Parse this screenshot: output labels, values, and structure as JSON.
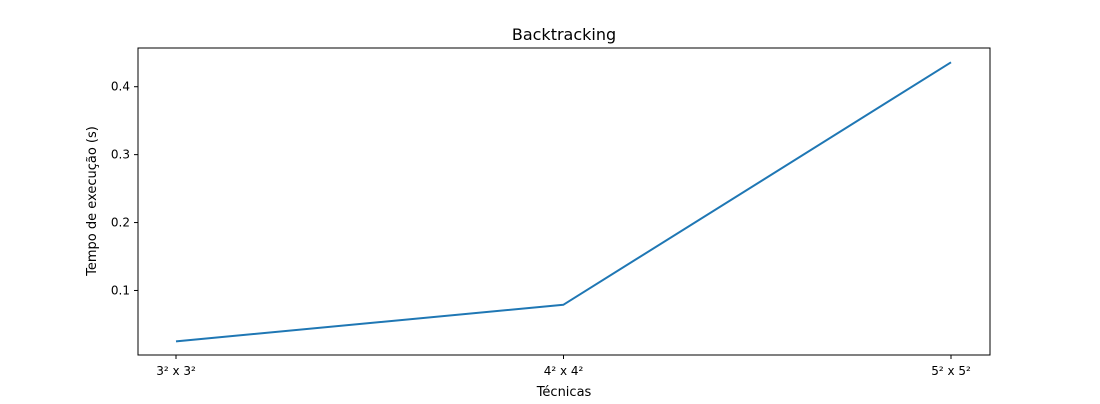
{
  "chart_data": {
    "type": "line",
    "title": "Backtracking",
    "xlabel": "Técnicas",
    "ylabel": "Tempo de execução (s)",
    "categories": [
      "3² x 3²",
      "4² x 4²",
      "5² x 5²"
    ],
    "series": [
      {
        "values": [
          0.025,
          0.079,
          0.436
        ],
        "color": "#1f77b4"
      }
    ],
    "ylim": [
      0.005,
      0.457
    ],
    "yticks": [
      0.1,
      0.2,
      0.3,
      0.4
    ],
    "ytick_labels": [
      "0.1",
      "0.2",
      "0.3",
      "0.4"
    ],
    "grid": false,
    "legend": false
  }
}
